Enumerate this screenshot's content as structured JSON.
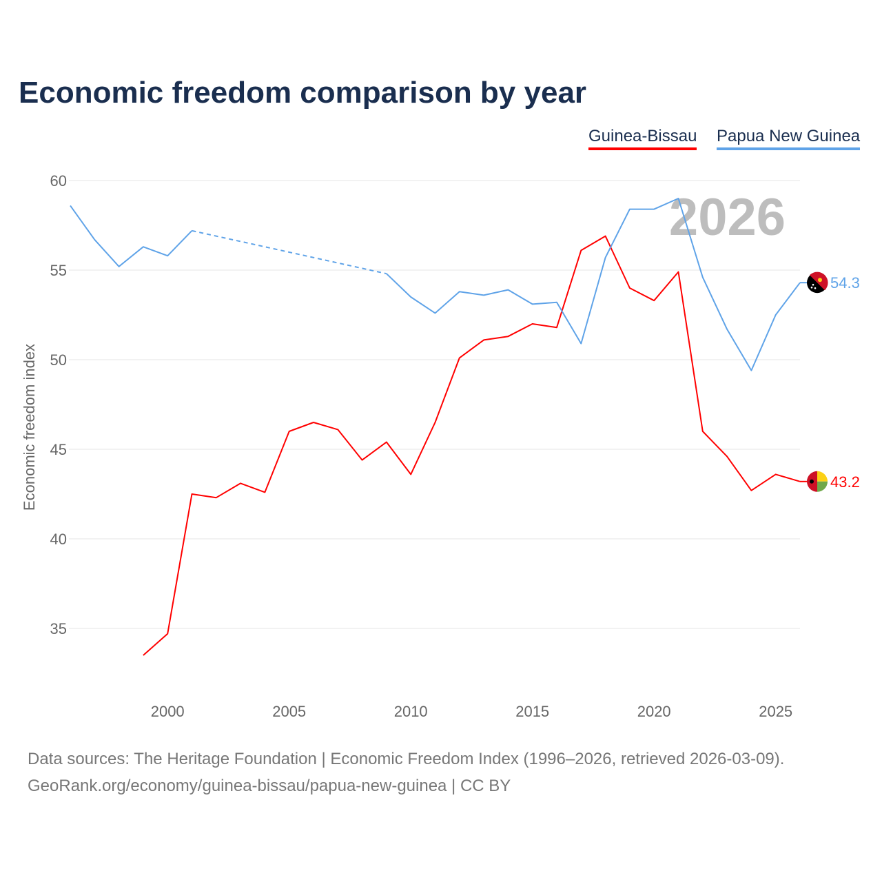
{
  "chart_data": {
    "type": "line",
    "title": "Economic freedom comparison by year",
    "ylabel": "Economic freedom index",
    "xlabel": "",
    "ylim": [
      31,
      60
    ],
    "xlim": [
      1996,
      2026
    ],
    "yticks": [
      35,
      40,
      45,
      50,
      55,
      60
    ],
    "xticks": [
      2000,
      2005,
      2010,
      2015,
      2020,
      2025
    ],
    "watermark_year": "2026",
    "legend_position": "top-right",
    "series": [
      {
        "name": "Guinea-Bissau",
        "color": "#ff0000",
        "end_label": "43.2",
        "x": [
          1999,
          2000,
          2001,
          2002,
          2003,
          2004,
          2005,
          2006,
          2007,
          2008,
          2009,
          2010,
          2011,
          2012,
          2013,
          2014,
          2015,
          2016,
          2017,
          2018,
          2019,
          2020,
          2021,
          2022,
          2023,
          2024,
          2025,
          2026
        ],
        "values": [
          33.5,
          34.7,
          42.5,
          42.3,
          43.1,
          42.6,
          46.0,
          46.5,
          46.1,
          44.4,
          45.4,
          43.6,
          46.5,
          50.1,
          51.1,
          51.3,
          52.0,
          51.8,
          56.1,
          56.9,
          54.0,
          53.3,
          54.9,
          46.0,
          44.6,
          42.7,
          43.6,
          43.2
        ]
      },
      {
        "name": "Papua New Guinea",
        "color": "#5fa3e8",
        "end_label": "54.3",
        "x": [
          1996,
          1997,
          1998,
          1999,
          2000,
          2001,
          2009,
          2010,
          2011,
          2012,
          2013,
          2014,
          2015,
          2016,
          2017,
          2018,
          2019,
          2020,
          2021,
          2022,
          2023,
          2024,
          2025,
          2026
        ],
        "values": [
          58.6,
          56.7,
          55.2,
          56.3,
          55.8,
          57.2,
          54.8,
          53.5,
          52.6,
          53.8,
          53.6,
          53.9,
          53.1,
          53.2,
          50.9,
          55.7,
          58.4,
          58.4,
          59.0,
          54.6,
          51.7,
          49.4,
          52.5,
          54.3
        ],
        "gap": [
          2001,
          2009
        ]
      }
    ]
  },
  "footer": {
    "line1": "Data sources: The Heritage Foundation | Economic Freedom Index (1996–2026, retrieved 2026-03-09).",
    "line2": "GeoRank.org/economy/guinea-bissau/papua-new-guinea | CC BY"
  }
}
